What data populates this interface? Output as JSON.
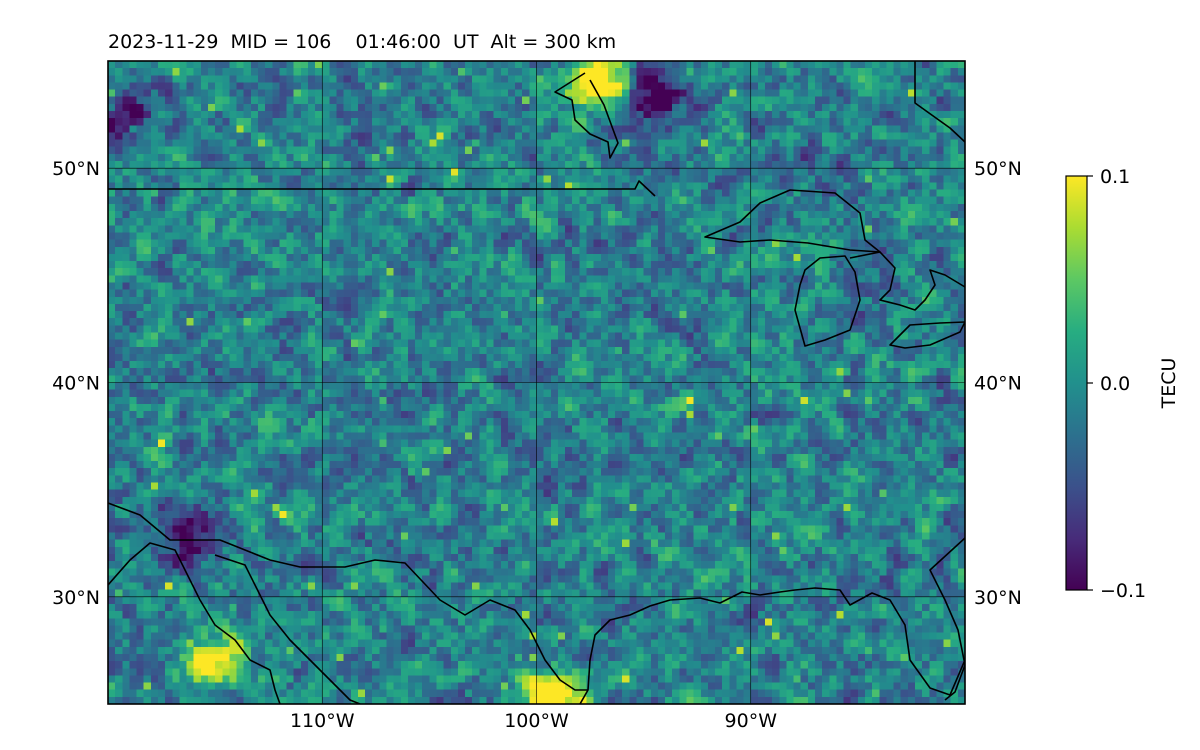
{
  "title": "2023-11-29  MID = 106    01:46:00  UT  Alt = 300 km",
  "map": {
    "lon_range": [
      -120,
      -80
    ],
    "lat_range": [
      25,
      55
    ],
    "gridlines": true,
    "lon_ticks": [
      {
        "value": -110,
        "label": "110°W"
      },
      {
        "value": -100,
        "label": "100°W"
      },
      {
        "value": -90,
        "label": "90°W"
      }
    ],
    "lat_ticks": [
      {
        "value": 50,
        "label": "50°N"
      },
      {
        "value": 40,
        "label": "40°N"
      },
      {
        "value": 30,
        "label": "30°N"
      }
    ],
    "coastline_color": "#000000"
  },
  "colorbar": {
    "label": "TECU",
    "colormap": "viridis",
    "range": [
      -0.1,
      0.1
    ],
    "ticks": [
      {
        "value": 0.1,
        "label": "0.1"
      },
      {
        "value": 0.0,
        "label": "0.0"
      },
      {
        "value": -0.1,
        "label": "−0.1"
      }
    ]
  },
  "features": [
    {
      "kind": "positive",
      "lon": -97,
      "lat": 54,
      "strength": 0.16
    },
    {
      "kind": "negative",
      "lon": -94.5,
      "lat": 53.5,
      "strength": -0.13
    },
    {
      "kind": "negative",
      "lon": -119.5,
      "lat": 52.5,
      "strength": -0.1
    },
    {
      "kind": "positive",
      "lon": -99,
      "lat": 25.3,
      "strength": 0.16
    },
    {
      "kind": "positive",
      "lon": -115,
      "lat": 27,
      "strength": 0.12
    },
    {
      "kind": "negative",
      "lon": -116.5,
      "lat": 33,
      "strength": -0.09
    }
  ]
}
